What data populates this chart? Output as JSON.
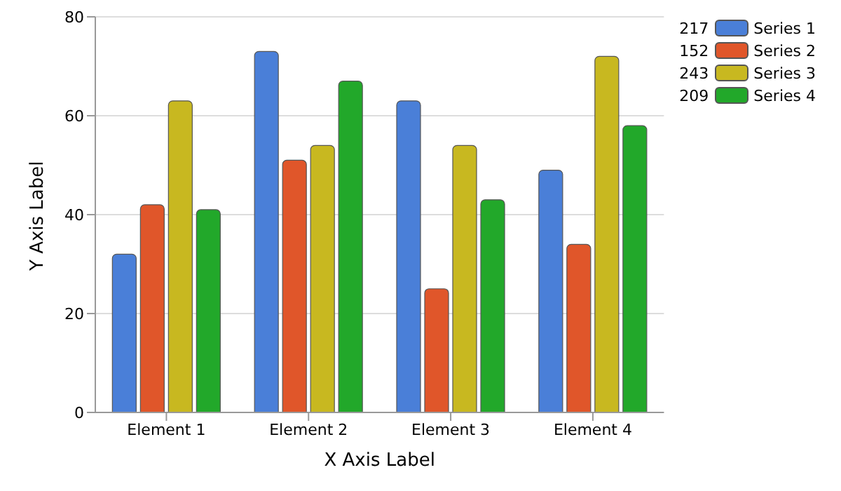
{
  "chart_data": {
    "type": "bar",
    "xlabel": "X Axis Label",
    "ylabel": "Y Axis Label",
    "categories": [
      "Element 1",
      "Element 2",
      "Element 3",
      "Element 4"
    ],
    "series": [
      {
        "name": "Series 1",
        "color": "#4a7fd8",
        "values": [
          32,
          73,
          63,
          49
        ]
      },
      {
        "name": "Series 2",
        "color": "#e0562a",
        "values": [
          42,
          51,
          25,
          34
        ]
      },
      {
        "name": "Series 3",
        "color": "#c8b820",
        "values": [
          63,
          54,
          54,
          72
        ]
      },
      {
        "name": "Series 4",
        "color": "#22a82a",
        "values": [
          41,
          67,
          43,
          58
        ]
      }
    ],
    "annotations": [
      "217",
      "152",
      "243",
      "209"
    ],
    "ylim": [
      0,
      80
    ],
    "yticks": [
      0,
      20,
      40,
      60,
      80
    ],
    "grid": "y",
    "legend": "top right"
  }
}
